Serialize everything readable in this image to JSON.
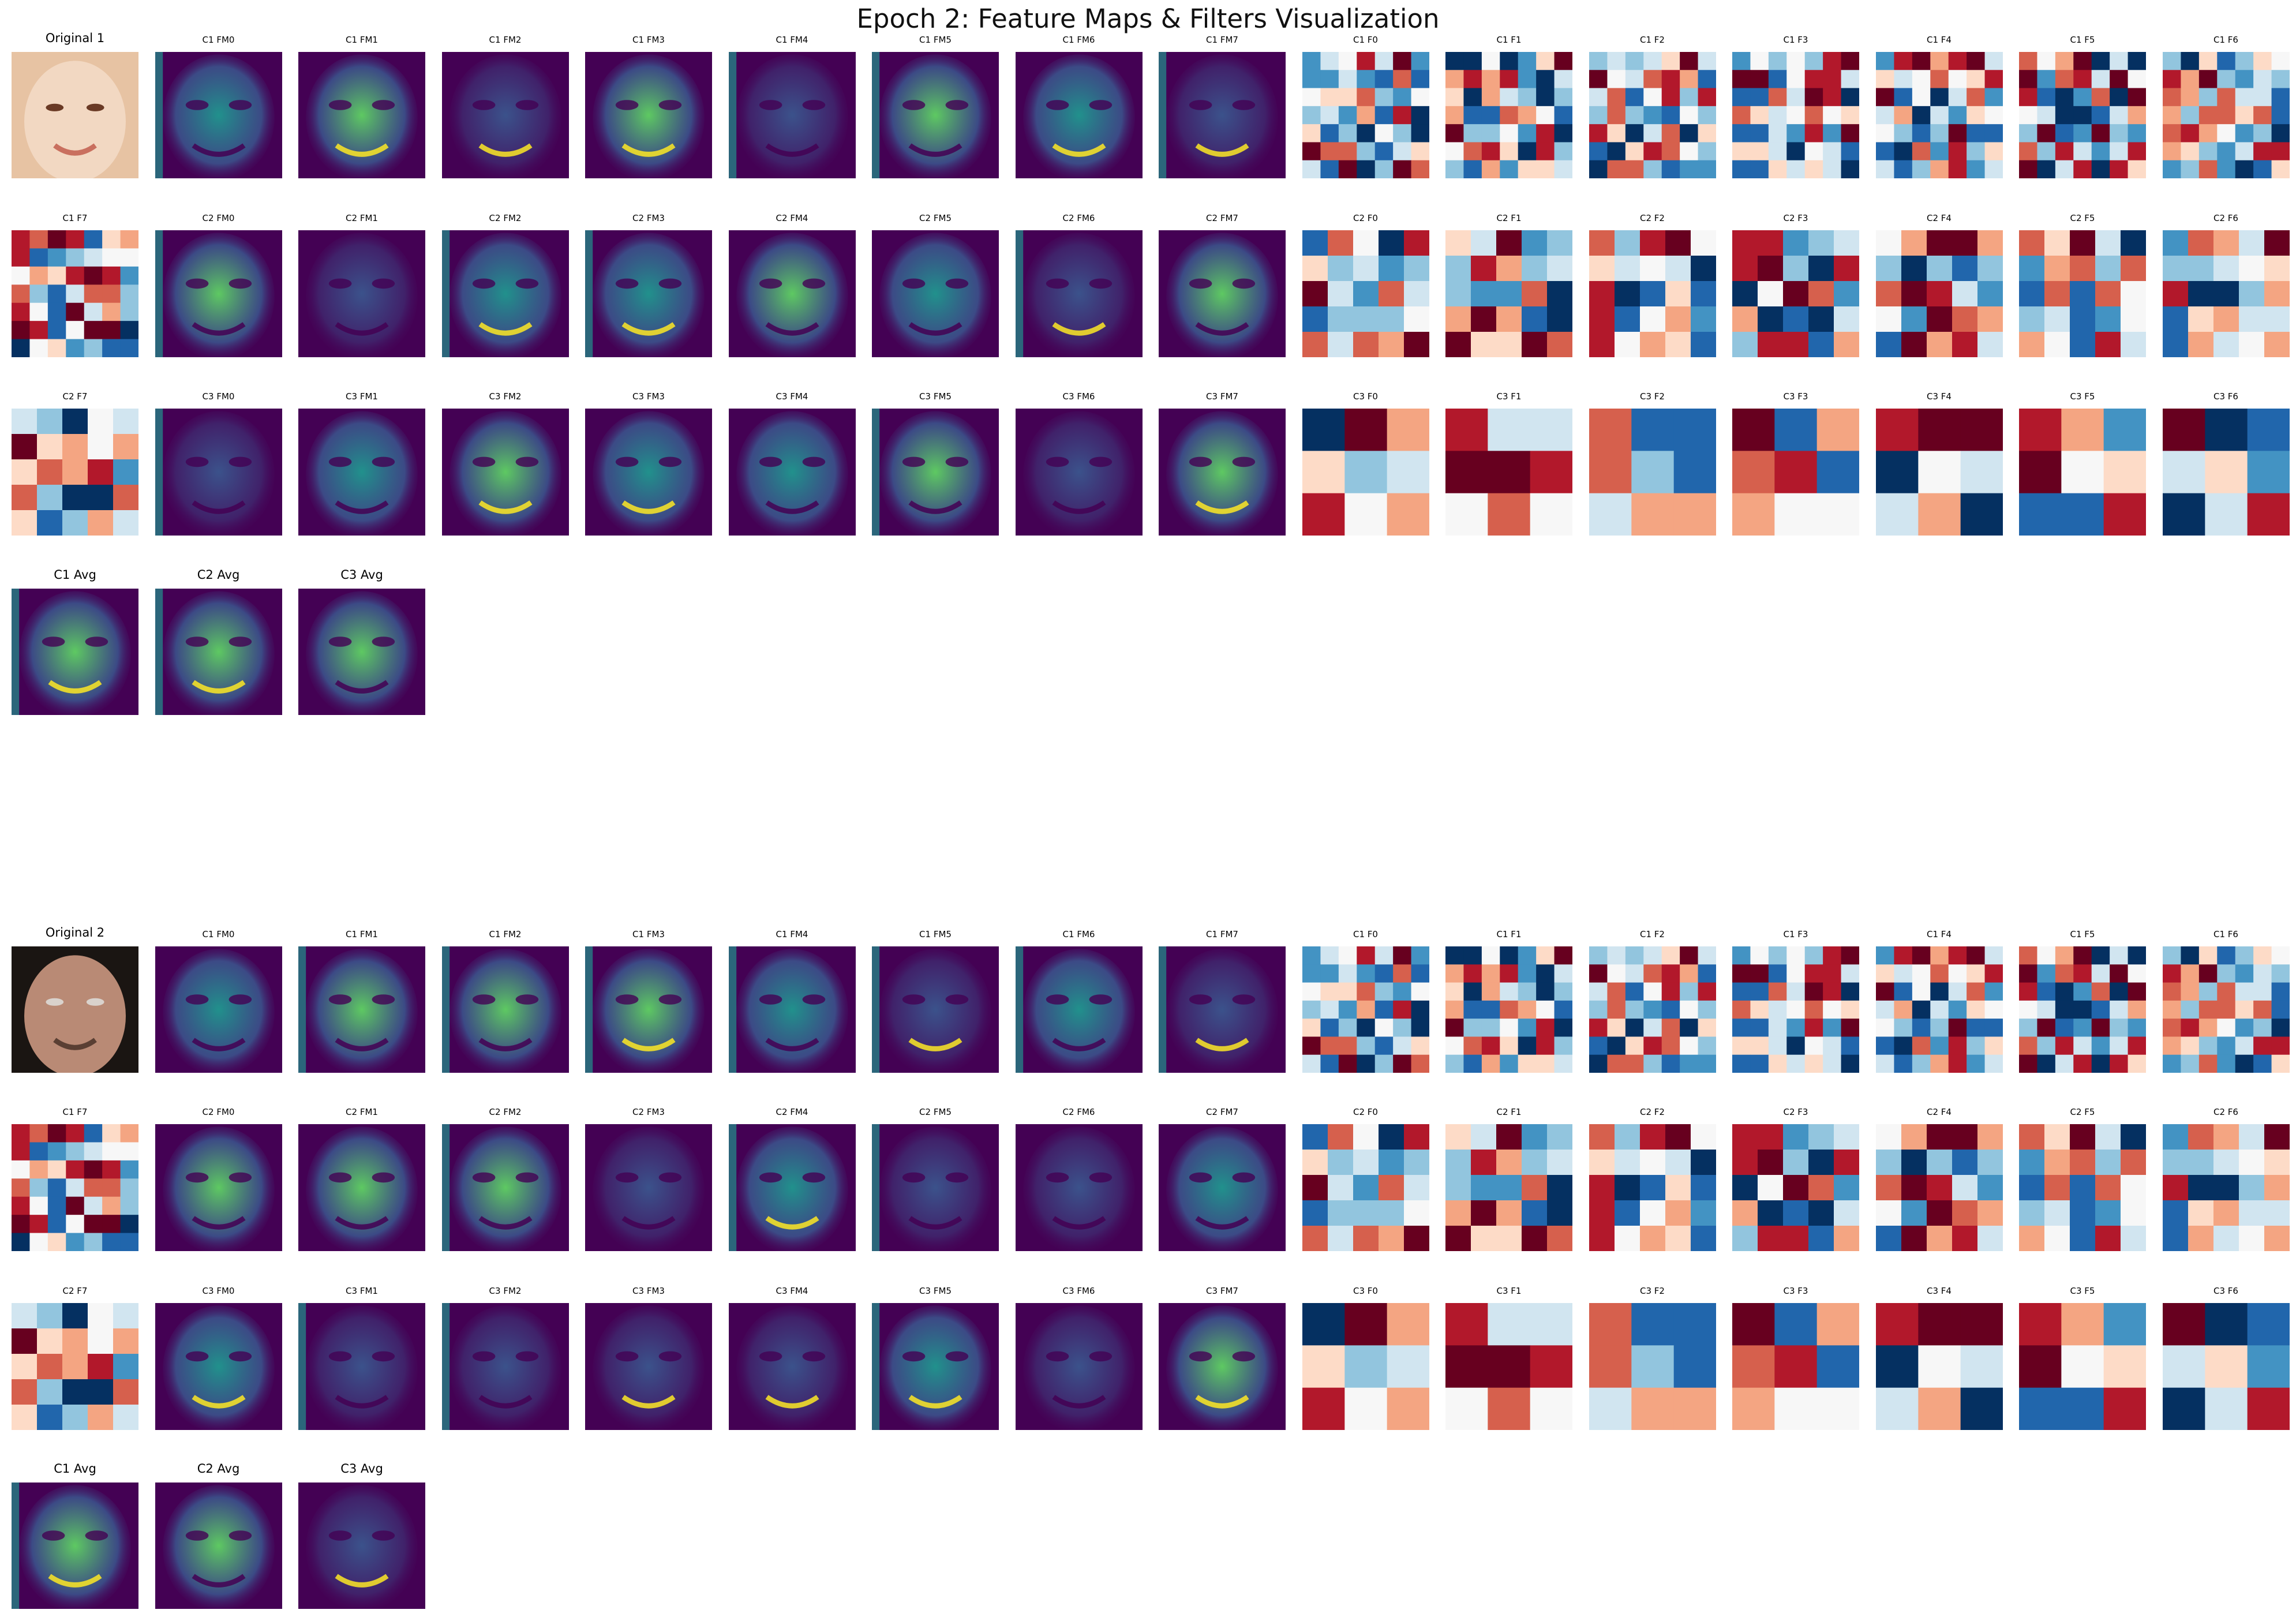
{
  "figure": {
    "title": "Epoch 2: Feature Maps & Filters Visualization"
  },
  "chart_data": {
    "type": "heatmap",
    "title": "Epoch 2: Feature Maps & Filters Visualization",
    "samples": [
      {
        "label": "Original 1",
        "image_colors": [
          "#e7c3a3",
          "#f2d8c2",
          "#6a3a25",
          "#c9705f"
        ],
        "rows": [
          [
            "Original 1",
            "C1 FM0",
            "C1 FM1",
            "C1 FM2",
            "C1 FM3",
            "C1 FM4",
            "C1 FM5",
            "C1 FM6",
            "C1 FM7",
            "C1 F0",
            "C1 F1",
            "C1 F2",
            "C1 F3",
            "C1 F4",
            "C1 F5",
            "C1 F6"
          ],
          [
            "C1 F7",
            "C2 FM0",
            "C2 FM1",
            "C2 FM2",
            "C2 FM3",
            "C2 FM4",
            "C2 FM5",
            "C2 FM6",
            "C2 FM7",
            "C2 F0",
            "C2 F1",
            "C2 F2",
            "C2 F3",
            "C2 F4",
            "C2 F5",
            "C2 F6"
          ],
          [
            "C2 F7",
            "C3 FM0",
            "C3 FM1",
            "C3 FM2",
            "C3 FM3",
            "C3 FM4",
            "C3 FM5",
            "C3 FM6",
            "C3 FM7",
            "C3 F0",
            "C3 F1",
            "C3 F2",
            "C3 F3",
            "C3 F4",
            "C3 F5",
            "C3 F6"
          ],
          [
            "C1 Avg",
            "C2 Avg",
            "C3 Avg"
          ]
        ]
      },
      {
        "label": "Original 2",
        "image_colors": [
          "#1a1512",
          "#b98a75",
          "#d9d2cc",
          "#5a3f33"
        ],
        "rows": [
          [
            "Original 2",
            "C1 FM0",
            "C1 FM1",
            "C1 FM2",
            "C1 FM3",
            "C1 FM4",
            "C1 FM5",
            "C1 FM6",
            "C1 FM7",
            "C1 F0",
            "C1 F1",
            "C1 F2",
            "C1 F3",
            "C1 F4",
            "C1 F5",
            "C1 F6"
          ],
          [
            "C1 F7",
            "C2 FM0",
            "C2 FM1",
            "C2 FM2",
            "C2 FM3",
            "C2 FM4",
            "C2 FM5",
            "C2 FM6",
            "C2 FM7",
            "C2 F0",
            "C2 F1",
            "C2 F2",
            "C2 F3",
            "C2 F4",
            "C2 F5",
            "C2 F6"
          ],
          [
            "C2 F7",
            "C3 FM0",
            "C3 FM1",
            "C3 FM2",
            "C3 FM3",
            "C3 FM4",
            "C3 FM5",
            "C3 FM6",
            "C3 FM7",
            "C3 F0",
            "C3 F1",
            "C3 F2",
            "C3 F3",
            "C3 F4",
            "C3 F5",
            "C3 F6"
          ],
          [
            "C1 Avg",
            "C2 Avg",
            "C3 Avg"
          ]
        ]
      }
    ],
    "feature_map_colormap": [
      "#440154",
      "#3b528b",
      "#21918c",
      "#5ec962",
      "#fde725"
    ],
    "filter_colormap": [
      "#053061",
      "#2166ac",
      "#4393c3",
      "#92c5de",
      "#d1e5f0",
      "#f7f7f7",
      "#fddbc7",
      "#f4a582",
      "#d6604d",
      "#b2182b",
      "#67001f"
    ],
    "filter_grid_sizes": {
      "C1": 7,
      "C2": 5,
      "C3": 3
    }
  }
}
